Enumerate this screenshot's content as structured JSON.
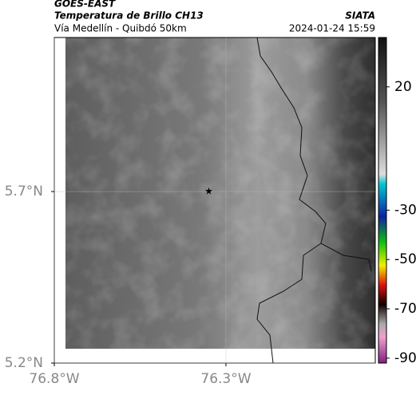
{
  "header": {
    "title": "GOES-EAST",
    "subtitle": "Temperatura de Brillo CH13",
    "source": "SIATA",
    "region": "Vía Medellín - Quibdó 50km",
    "datetime": "2024-01-24 15:59"
  },
  "map": {
    "xlim": [
      -76.8,
      -75.865
    ],
    "ylim": [
      5.2,
      6.149
    ],
    "xticks": [
      {
        "value": -76.8,
        "label": "76.8°W"
      },
      {
        "value": -76.3,
        "label": "76.3°W"
      }
    ],
    "yticks": [
      {
        "value": 5.7,
        "label": "5.7°N"
      },
      {
        "value": 5.2,
        "label": "5.2°N"
      }
    ],
    "grid": true,
    "marker": {
      "lon": -76.35,
      "lat": 5.7,
      "color": "#000000"
    }
  },
  "colorbar": {
    "clim": [
      -92,
      40
    ],
    "ticks": [
      20,
      -30,
      -50,
      -70,
      -90
    ]
  }
}
